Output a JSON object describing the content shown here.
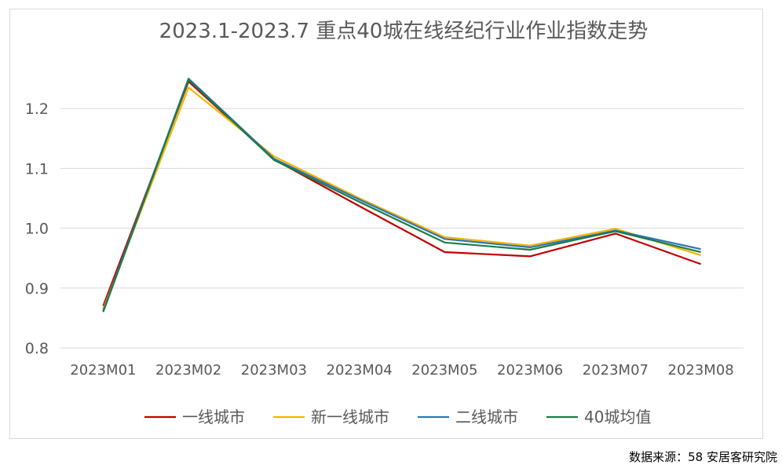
{
  "chart_data": {
    "type": "line",
    "title": "2023.1-2023.7 重点40城在线经纪行业作业指数走势",
    "categories": [
      "2023M01",
      "2023M02",
      "2023M03",
      "2023M04",
      "2023M05",
      "2023M06",
      "2023M07",
      "2023M08"
    ],
    "ylim": [
      0.8,
      1.25
    ],
    "yticks": [
      "0.8",
      "0.9",
      "1.0",
      "1.1",
      "1.2"
    ],
    "grid": true,
    "legend_position": "bottom",
    "series": [
      {
        "name": "一线城市",
        "color": "#c00000",
        "values": [
          0.87,
          1.245,
          1.115,
          1.037,
          0.96,
          0.953,
          0.991,
          0.94
        ]
      },
      {
        "name": "新一线城市",
        "color": "#f4b400",
        "values": [
          0.865,
          1.235,
          1.12,
          1.05,
          0.985,
          0.971,
          0.999,
          0.955
        ]
      },
      {
        "name": "二线城市",
        "color": "#2e75b6",
        "values": [
          0.862,
          1.25,
          1.116,
          1.048,
          0.982,
          0.968,
          0.996,
          0.965
        ]
      },
      {
        "name": "40城均值",
        "color": "#1e7b45",
        "values": [
          0.86,
          1.248,
          1.114,
          1.044,
          0.976,
          0.964,
          0.995,
          0.96
        ]
      }
    ]
  },
  "source_text": "数据来源：58 安居客研究院"
}
